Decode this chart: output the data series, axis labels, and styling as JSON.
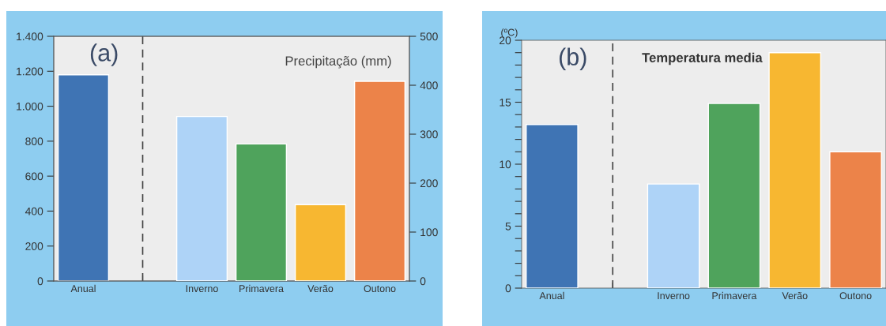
{
  "chart_data": [
    {
      "type": "bar",
      "title": "(a)",
      "subtitle": "Precipitação (mm)",
      "categories": [
        "Anual",
        null,
        "Inverno",
        "Primavera",
        "Verão",
        "Outono"
      ],
      "series": [
        {
          "axis": "y",
          "values": [
            1180,
            null,
            null,
            null,
            null,
            null
          ],
          "colors": [
            "#3f74b4",
            null,
            null,
            null,
            null,
            null
          ]
        },
        {
          "axis": "y2",
          "values": [
            null,
            null,
            336,
            280,
            156,
            408
          ],
          "colors": [
            null,
            null,
            "#aed3f7",
            "#4fa35c",
            "#f7b731",
            "#ec8349"
          ]
        }
      ],
      "ylim": [
        0,
        1400
      ],
      "yticks": [
        0,
        200,
        400,
        600,
        800,
        {
          "value": 1000,
          "label": "1.000"
        },
        {
          "value": 1200,
          "label": "1.200"
        },
        {
          "value": 1400,
          "label": "1.400"
        }
      ],
      "y2lim": [
        0,
        500
      ],
      "y2ticks": [
        0,
        100,
        200,
        300,
        400,
        500
      ]
    },
    {
      "type": "bar",
      "title": "(b)",
      "subtitle": "Temperatura media",
      "ylabel": "(ºC)",
      "categories": [
        "Anual",
        null,
        "Inverno",
        "Primavera",
        "Verão",
        "Outono"
      ],
      "series": [
        {
          "values": [
            13.2,
            null,
            8.4,
            14.9,
            19.0,
            11.0
          ],
          "colors": [
            "#3f74b4",
            null,
            "#aed3f7",
            "#4fa35c",
            "#f7b731",
            "#ec8349"
          ]
        }
      ],
      "ylim": [
        0,
        20
      ],
      "yticks": [
        0,
        {
          "value": 1,
          "label": null
        },
        {
          "value": 2,
          "label": null
        },
        {
          "value": 3,
          "label": null
        },
        {
          "value": 4,
          "label": null
        },
        5,
        {
          "value": 6,
          "label": null
        },
        {
          "value": 7,
          "label": null
        },
        {
          "value": 8,
          "label": null
        },
        {
          "value": 9,
          "label": null
        },
        10,
        {
          "value": 11,
          "label": null
        },
        {
          "value": 12,
          "label": null
        },
        {
          "value": 13,
          "label": null
        },
        {
          "value": 14,
          "label": null
        },
        15,
        {
          "value": 16,
          "label": null
        },
        {
          "value": 17,
          "label": null
        },
        {
          "value": 18,
          "label": null
        },
        {
          "value": 19,
          "label": null
        },
        20
      ]
    }
  ]
}
